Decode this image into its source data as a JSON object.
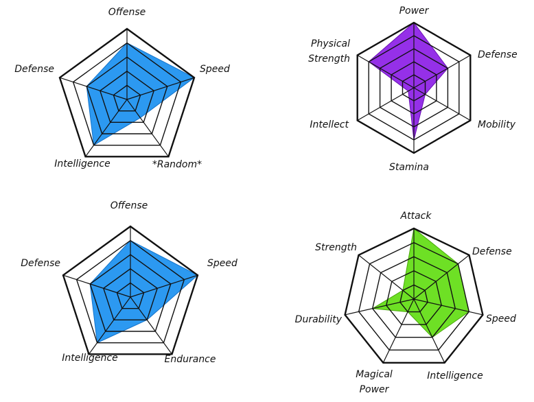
{
  "chart_data": [
    {
      "type": "radar",
      "axes": [
        "Offense",
        "Speed",
        "*Random*",
        "Intelligence",
        "Defense"
      ],
      "axis_label_lines": [
        [
          "Offense"
        ],
        [
          "Speed"
        ],
        [
          "*Random*"
        ],
        [
          "Intelligence"
        ],
        [
          "Defense"
        ]
      ],
      "rings": 5,
      "range": [
        0,
        5
      ],
      "values": [
        4,
        5,
        1.6,
        4,
        3
      ],
      "color": "#1a90f0",
      "edge_color": "#1573c9"
    },
    {
      "type": "radar",
      "axes": [
        "Power",
        "Defense",
        "Mobility",
        "Stamina",
        "Intellect",
        "Physical Strength"
      ],
      "axis_label_lines": [
        [
          "Power"
        ],
        [
          "Defense"
        ],
        [
          "Mobility"
        ],
        [
          "Stamina"
        ],
        [
          "Intellect"
        ],
        [
          "Physical",
          "Strength"
        ]
      ],
      "rings": 5,
      "range": [
        0,
        5
      ],
      "values": [
        5,
        3,
        1,
        4,
        0.5,
        4
      ],
      "color": "#8c1ee6",
      "edge_color": "#6a12b3"
    },
    {
      "type": "radar",
      "axes": [
        "Offense",
        "Speed",
        "Endurance",
        "Intelligence",
        "Defense"
      ],
      "axis_label_lines": [
        [
          "Offense"
        ],
        [
          "Speed"
        ],
        [
          "Endurance"
        ],
        [
          "Intelligence"
        ],
        [
          "Defense"
        ]
      ],
      "rings": 5,
      "range": [
        0,
        5
      ],
      "values": [
        4,
        5,
        2,
        4,
        3
      ],
      "color": "#1a90f0",
      "edge_color": "#1573c9"
    },
    {
      "type": "radar",
      "axes": [
        "Attack",
        "Defense",
        "Speed",
        "Intelligence",
        "Magical Power",
        "Durability",
        "Strength"
      ],
      "axis_label_lines": [
        [
          "Attack"
        ],
        [
          "Defense"
        ],
        [
          "Speed"
        ],
        [
          "Intelligence"
        ],
        [
          "Magical",
          "Power"
        ],
        [
          "Durability"
        ],
        [
          "Strength"
        ]
      ],
      "rings": 5,
      "range": [
        0,
        5
      ],
      "values": [
        5,
        4,
        4,
        3,
        1,
        3,
        1
      ],
      "color": "#62dd12",
      "edge_color": "#4aa80c"
    }
  ]
}
